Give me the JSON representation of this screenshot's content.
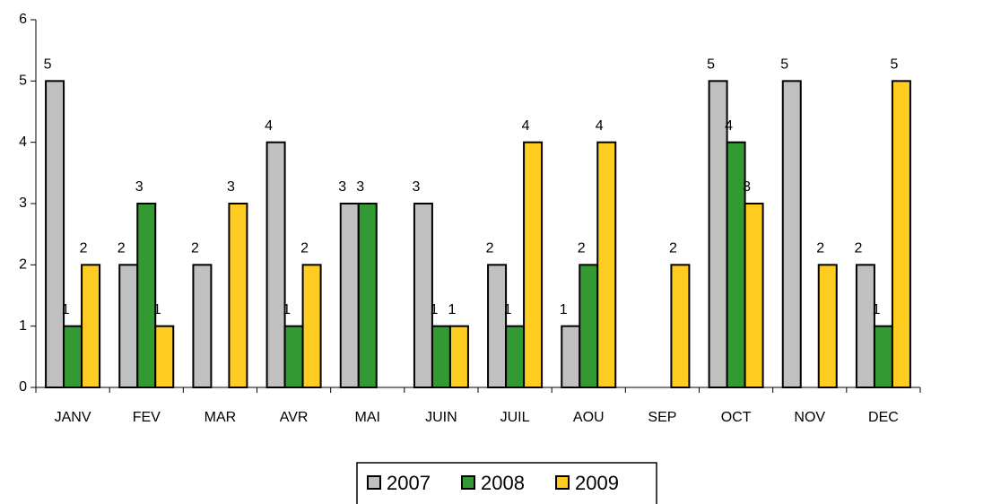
{
  "chart_data": {
    "type": "bar",
    "categories": [
      "JANV",
      "FEV",
      "MAR",
      "AVR",
      "MAI",
      "JUIN",
      "JUIL",
      "AOU",
      "SEP",
      "OCT",
      "NOV",
      "DEC"
    ],
    "series": [
      {
        "name": "2007",
        "color": "#c0c0c0",
        "values": [
          5,
          2,
          2,
          4,
          3,
          3,
          2,
          1,
          null,
          5,
          5,
          2
        ]
      },
      {
        "name": "2008",
        "color": "#339933",
        "values": [
          1,
          3,
          null,
          1,
          3,
          1,
          1,
          2,
          null,
          4,
          null,
          1
        ]
      },
      {
        "name": "2009",
        "color": "#ffcc22",
        "values": [
          2,
          1,
          3,
          2,
          null,
          1,
          4,
          4,
          2,
          3,
          2,
          5
        ]
      }
    ],
    "ylim": [
      0,
      6
    ],
    "yticks": [
      0,
      1,
      2,
      3,
      4,
      5,
      6
    ],
    "legend": "bottom"
  }
}
